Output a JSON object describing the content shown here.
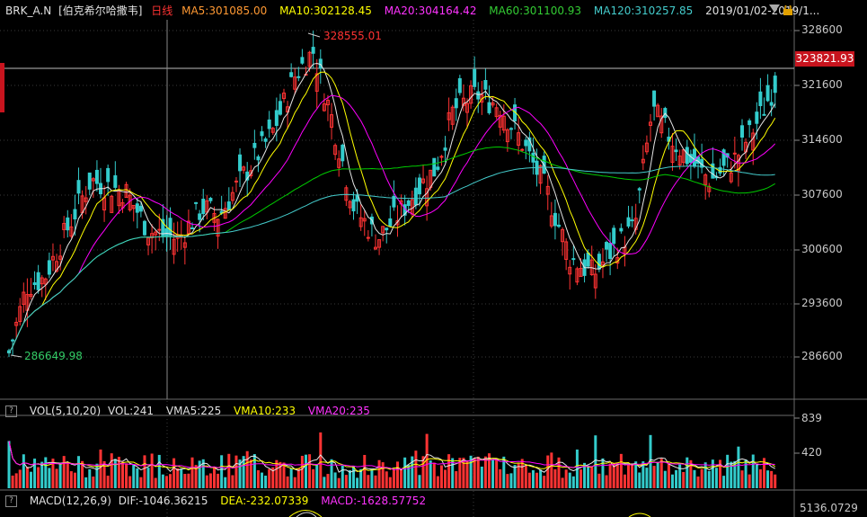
{
  "header": {
    "symbol": "BRK_A.N",
    "name": "[伯克希尔哈撒韦]",
    "period": "日线",
    "ma5": "MA5:301085.00",
    "ma10": "MA10:302128.45",
    "ma20": "MA20:304164.42",
    "ma60": "MA60:301100.93",
    "ma120": "MA120:310257.85",
    "date_range": "2019/01/02-2019/1...",
    "dropdown_icon": "triangle-down-icon",
    "lock_icon": "lock-icon"
  },
  "price_axis": {
    "ticks": [
      "328600",
      "321600",
      "314600",
      "307600",
      "300600",
      "293600",
      "286600"
    ],
    "current_price": "323821.93"
  },
  "annotations": {
    "high_label": "328555.01",
    "low_label": "286649.98"
  },
  "volume_panel": {
    "help": "?",
    "title": "VOL(5,10,20)",
    "vol": "VOL:241",
    "vma5": "VMA5:225",
    "vma10": "VMA10:233",
    "vma20": "VMA20:235",
    "ticks": [
      "839",
      "420"
    ]
  },
  "macd_panel": {
    "help": "?",
    "title": "MACD(12,26,9)",
    "dif": "DIF:-1046.36215",
    "dea": "DEA:-232.07339",
    "macd": "MACD:-1628.57752",
    "value": "5136.0729"
  },
  "colors": {
    "up": "#ff3333",
    "down": "#33cccc",
    "ma5": "#e6e6e6",
    "ma10": "#ffff00",
    "ma20": "#ff00ff",
    "ma60": "#00cc00",
    "ma120": "#44cccc",
    "accent_red": "#c8141e"
  }
}
